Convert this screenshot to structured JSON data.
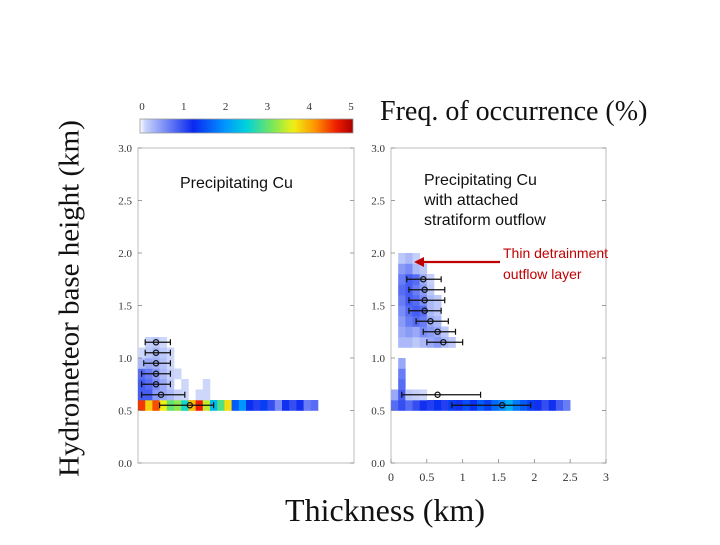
{
  "chart_data": [
    {
      "type": "heatmap",
      "panel": "left",
      "xlabel": "Thickness (km)",
      "ylabel": "Hydrometeor base height (km)",
      "xlim": [
        0,
        3
      ],
      "ylim": [
        0,
        3
      ],
      "yticks": [
        "0.0",
        "0.5",
        "1.0",
        "1.5",
        "2.0",
        "2.5",
        "3.0"
      ],
      "xticks": [],
      "annotation": "Precipitating Cu",
      "cells": [
        [
          0,
          0.55,
          4.5
        ],
        [
          0.1,
          0.55,
          3.8
        ],
        [
          0.2,
          0.55,
          4.4
        ],
        [
          0.3,
          0.55,
          3.6
        ],
        [
          0.4,
          0.55,
          3.0
        ],
        [
          0.5,
          0.55,
          3.2
        ],
        [
          0.6,
          0.55,
          2.6
        ],
        [
          0.7,
          0.55,
          3.9
        ],
        [
          0.8,
          0.55,
          4.6
        ],
        [
          0.9,
          0.55,
          3.4
        ],
        [
          1.0,
          0.55,
          2.3
        ],
        [
          1.1,
          0.55,
          2.9
        ],
        [
          1.2,
          0.55,
          3.7
        ],
        [
          1.3,
          0.55,
          1.6
        ],
        [
          1.4,
          0.55,
          2.0
        ],
        [
          1.5,
          0.55,
          1.3
        ],
        [
          1.6,
          0.55,
          1.1
        ],
        [
          1.7,
          0.55,
          1.4
        ],
        [
          1.8,
          0.55,
          1.0
        ],
        [
          1.9,
          0.55,
          0.6
        ],
        [
          2.0,
          0.55,
          1.2
        ],
        [
          2.1,
          0.55,
          1.0
        ],
        [
          2.2,
          0.55,
          1.2
        ],
        [
          2.3,
          0.55,
          0.7
        ],
        [
          2.4,
          0.55,
          0.8
        ],
        [
          0,
          0.65,
          0.9
        ],
        [
          0.1,
          0.65,
          0.9
        ],
        [
          0.2,
          0.65,
          0.5
        ],
        [
          0.3,
          0.65,
          0.4
        ],
        [
          0.4,
          0.65,
          0.3
        ],
        [
          0.5,
          0.65,
          0.15
        ],
        [
          0.6,
          0.65,
          0.1
        ],
        [
          0.8,
          0.65,
          0.1
        ],
        [
          0.9,
          0.65,
          0.1
        ],
        [
          0,
          0.75,
          0.9
        ],
        [
          0.1,
          0.75,
          0.8
        ],
        [
          0.2,
          0.75,
          0.6
        ],
        [
          0.3,
          0.75,
          0.4
        ],
        [
          0.4,
          0.75,
          0.2
        ],
        [
          0.6,
          0.75,
          0.1
        ],
        [
          0.9,
          0.75,
          0.1
        ],
        [
          0,
          0.85,
          0.8
        ],
        [
          0.1,
          0.85,
          0.7
        ],
        [
          0.2,
          0.85,
          0.5
        ],
        [
          0.3,
          0.85,
          0.3
        ],
        [
          0.4,
          0.85,
          0.15
        ],
        [
          0.5,
          0.85,
          0.1
        ],
        [
          0,
          0.95,
          0.3
        ],
        [
          0.1,
          0.95,
          0.4
        ],
        [
          0.2,
          0.95,
          0.35
        ],
        [
          0.3,
          0.95,
          0.25
        ],
        [
          0.4,
          0.95,
          0.1
        ],
        [
          0,
          1.05,
          0.1
        ],
        [
          0.1,
          1.05,
          0.2
        ],
        [
          0.2,
          1.05,
          0.3
        ],
        [
          0.3,
          1.05,
          0.2
        ],
        [
          0.4,
          1.05,
          0.1
        ],
        [
          0.1,
          1.15,
          0.15
        ],
        [
          0.2,
          1.15,
          0.2
        ],
        [
          0.3,
          1.15,
          0.1
        ]
      ],
      "error_bars": [
        {
          "y": 1.15,
          "x": 0.25,
          "xmin": 0.1,
          "xmax": 0.45
        },
        {
          "y": 1.05,
          "x": 0.25,
          "xmin": 0.1,
          "xmax": 0.45
        },
        {
          "y": 0.95,
          "x": 0.25,
          "xmin": 0.08,
          "xmax": 0.45
        },
        {
          "y": 0.85,
          "x": 0.25,
          "xmin": 0.05,
          "xmax": 0.45
        },
        {
          "y": 0.75,
          "x": 0.25,
          "xmin": 0.05,
          "xmax": 0.45
        },
        {
          "y": 0.65,
          "x": 0.32,
          "xmin": 0.05,
          "xmax": 0.65
        },
        {
          "y": 0.55,
          "x": 0.72,
          "xmin": 0.3,
          "xmax": 1.05
        }
      ]
    },
    {
      "type": "heatmap",
      "panel": "right",
      "xlabel": "Thickness (km)",
      "xlim": [
        0,
        3
      ],
      "ylim": [
        0,
        3
      ],
      "yticks": [
        "0.0",
        "0.5",
        "1.0",
        "1.5",
        "2.0",
        "2.5",
        "3.0"
      ],
      "xticks": [
        "0",
        "0.5",
        "1",
        "1.5",
        "2",
        "2.5",
        "3"
      ],
      "annotation": [
        "Precipitating Cu",
        "with attached",
        "stratiform outflow"
      ],
      "arrow_annotation": [
        "Thin detrainment",
        "outflow layer"
      ],
      "cells": [
        [
          0,
          0.55,
          0.8
        ],
        [
          0.1,
          0.55,
          1.0
        ],
        [
          0.2,
          0.55,
          0.8
        ],
        [
          0.3,
          0.55,
          1.0
        ],
        [
          0.4,
          0.55,
          1.2
        ],
        [
          0.5,
          0.55,
          1.1
        ],
        [
          0.6,
          0.55,
          1.3
        ],
        [
          0.7,
          0.55,
          1.1
        ],
        [
          0.8,
          0.55,
          1.4
        ],
        [
          0.9,
          0.55,
          1.2
        ],
        [
          1.0,
          0.55,
          1.5
        ],
        [
          1.1,
          0.55,
          1.3
        ],
        [
          1.2,
          0.55,
          1.6
        ],
        [
          1.3,
          0.55,
          1.4
        ],
        [
          1.4,
          0.55,
          1.7
        ],
        [
          1.5,
          0.55,
          1.9
        ],
        [
          1.6,
          0.55,
          2.2
        ],
        [
          1.7,
          0.55,
          1.8
        ],
        [
          1.8,
          0.55,
          1.6
        ],
        [
          1.9,
          0.55,
          1.4
        ],
        [
          2.0,
          0.55,
          1.2
        ],
        [
          2.1,
          0.55,
          1.0
        ],
        [
          2.2,
          0.55,
          1.2
        ],
        [
          2.3,
          0.55,
          0.9
        ],
        [
          2.4,
          0.55,
          0.7
        ],
        [
          0,
          0.65,
          0.4
        ],
        [
          0.1,
          0.65,
          0.9
        ],
        [
          0.2,
          0.65,
          0.2
        ],
        [
          0.3,
          0.65,
          0.15
        ],
        [
          0.4,
          0.65,
          0.1
        ],
        [
          0.1,
          0.75,
          0.8
        ],
        [
          0.1,
          0.85,
          0.7
        ],
        [
          0.1,
          0.95,
          0.4
        ],
        [
          0.1,
          1.15,
          0.3
        ],
        [
          0.2,
          1.15,
          0.3
        ],
        [
          0.3,
          1.15,
          0.2
        ],
        [
          0.4,
          1.15,
          0.3
        ],
        [
          0.5,
          1.15,
          0.4
        ],
        [
          0.6,
          1.15,
          0.5
        ],
        [
          0.7,
          1.15,
          0.3
        ],
        [
          0.8,
          1.15,
          0.2
        ],
        [
          0.1,
          1.25,
          0.4
        ],
        [
          0.2,
          1.25,
          0.5
        ],
        [
          0.3,
          1.25,
          0.4
        ],
        [
          0.4,
          1.25,
          0.6
        ],
        [
          0.5,
          1.25,
          0.5
        ],
        [
          0.6,
          1.25,
          0.4
        ],
        [
          0.7,
          1.25,
          0.2
        ],
        [
          0.1,
          1.35,
          0.5
        ],
        [
          0.2,
          1.35,
          0.7
        ],
        [
          0.3,
          1.35,
          0.8
        ],
        [
          0.4,
          1.35,
          0.7
        ],
        [
          0.5,
          1.35,
          0.4
        ],
        [
          0.6,
          1.35,
          0.3
        ],
        [
          0.1,
          1.45,
          0.6
        ],
        [
          0.2,
          1.45,
          0.8
        ],
        [
          0.3,
          1.45,
          0.9
        ],
        [
          0.4,
          1.45,
          0.8
        ],
        [
          0.5,
          1.45,
          0.3
        ],
        [
          0.6,
          1.45,
          0.2
        ],
        [
          0.1,
          1.55,
          0.7
        ],
        [
          0.2,
          1.55,
          0.9
        ],
        [
          0.3,
          1.55,
          0.8
        ],
        [
          0.4,
          1.55,
          0.6
        ],
        [
          0.5,
          1.55,
          0.3
        ],
        [
          0.6,
          1.55,
          0.2
        ],
        [
          0.1,
          1.65,
          0.8
        ],
        [
          0.2,
          1.65,
          0.9
        ],
        [
          0.3,
          1.65,
          0.7
        ],
        [
          0.4,
          1.65,
          0.5
        ],
        [
          0.5,
          1.65,
          0.2
        ],
        [
          0.1,
          1.75,
          0.7
        ],
        [
          0.2,
          1.75,
          0.9
        ],
        [
          0.3,
          1.75,
          0.8
        ],
        [
          0.4,
          1.75,
          0.4
        ],
        [
          0.5,
          1.75,
          0.15
        ],
        [
          0.1,
          1.85,
          0.5
        ],
        [
          0.2,
          1.85,
          0.6
        ],
        [
          0.3,
          1.85,
          0.3
        ],
        [
          0.4,
          1.85,
          0.2
        ],
        [
          0.1,
          1.95,
          0.2
        ],
        [
          0.2,
          1.95,
          0.3
        ],
        [
          0.3,
          1.95,
          0.15
        ]
      ],
      "error_bars": [
        {
          "y": 1.15,
          "x": 0.73,
          "xmin": 0.5,
          "xmax": 1.0
        },
        {
          "y": 1.25,
          "x": 0.65,
          "xmin": 0.45,
          "xmax": 0.9
        },
        {
          "y": 1.35,
          "x": 0.55,
          "xmin": 0.35,
          "xmax": 0.8
        },
        {
          "y": 1.45,
          "x": 0.47,
          "xmin": 0.25,
          "xmax": 0.7
        },
        {
          "y": 1.55,
          "x": 0.47,
          "xmin": 0.25,
          "xmax": 0.75
        },
        {
          "y": 1.65,
          "x": 0.47,
          "xmin": 0.25,
          "xmax": 0.75
        },
        {
          "y": 1.75,
          "x": 0.45,
          "xmin": 0.22,
          "xmax": 0.7
        },
        {
          "y": 0.65,
          "x": 0.65,
          "xmin": 0.15,
          "xmax": 1.25
        },
        {
          "y": 0.55,
          "x": 1.55,
          "xmin": 0.85,
          "xmax": 1.95
        }
      ]
    }
  ],
  "colorbar": {
    "title": "Freq. of occurrence (%)",
    "ticks": [
      "0",
      "1",
      "2",
      "3",
      "4",
      "5"
    ],
    "range": [
      0,
      5
    ]
  },
  "labels": {
    "ylabel": "Hydrometeor base height (km)",
    "xlabel": "Thickness (km)",
    "left_annotation": "Precipitating Cu",
    "right_annotation": [
      "Precipitating Cu",
      "with attached",
      "stratiform outflow"
    ],
    "arrow_annotation": [
      "Thin detrainment",
      "outflow layer"
    ]
  },
  "colors": {
    "arrow": "#c00000",
    "errorbar": "#111111"
  }
}
